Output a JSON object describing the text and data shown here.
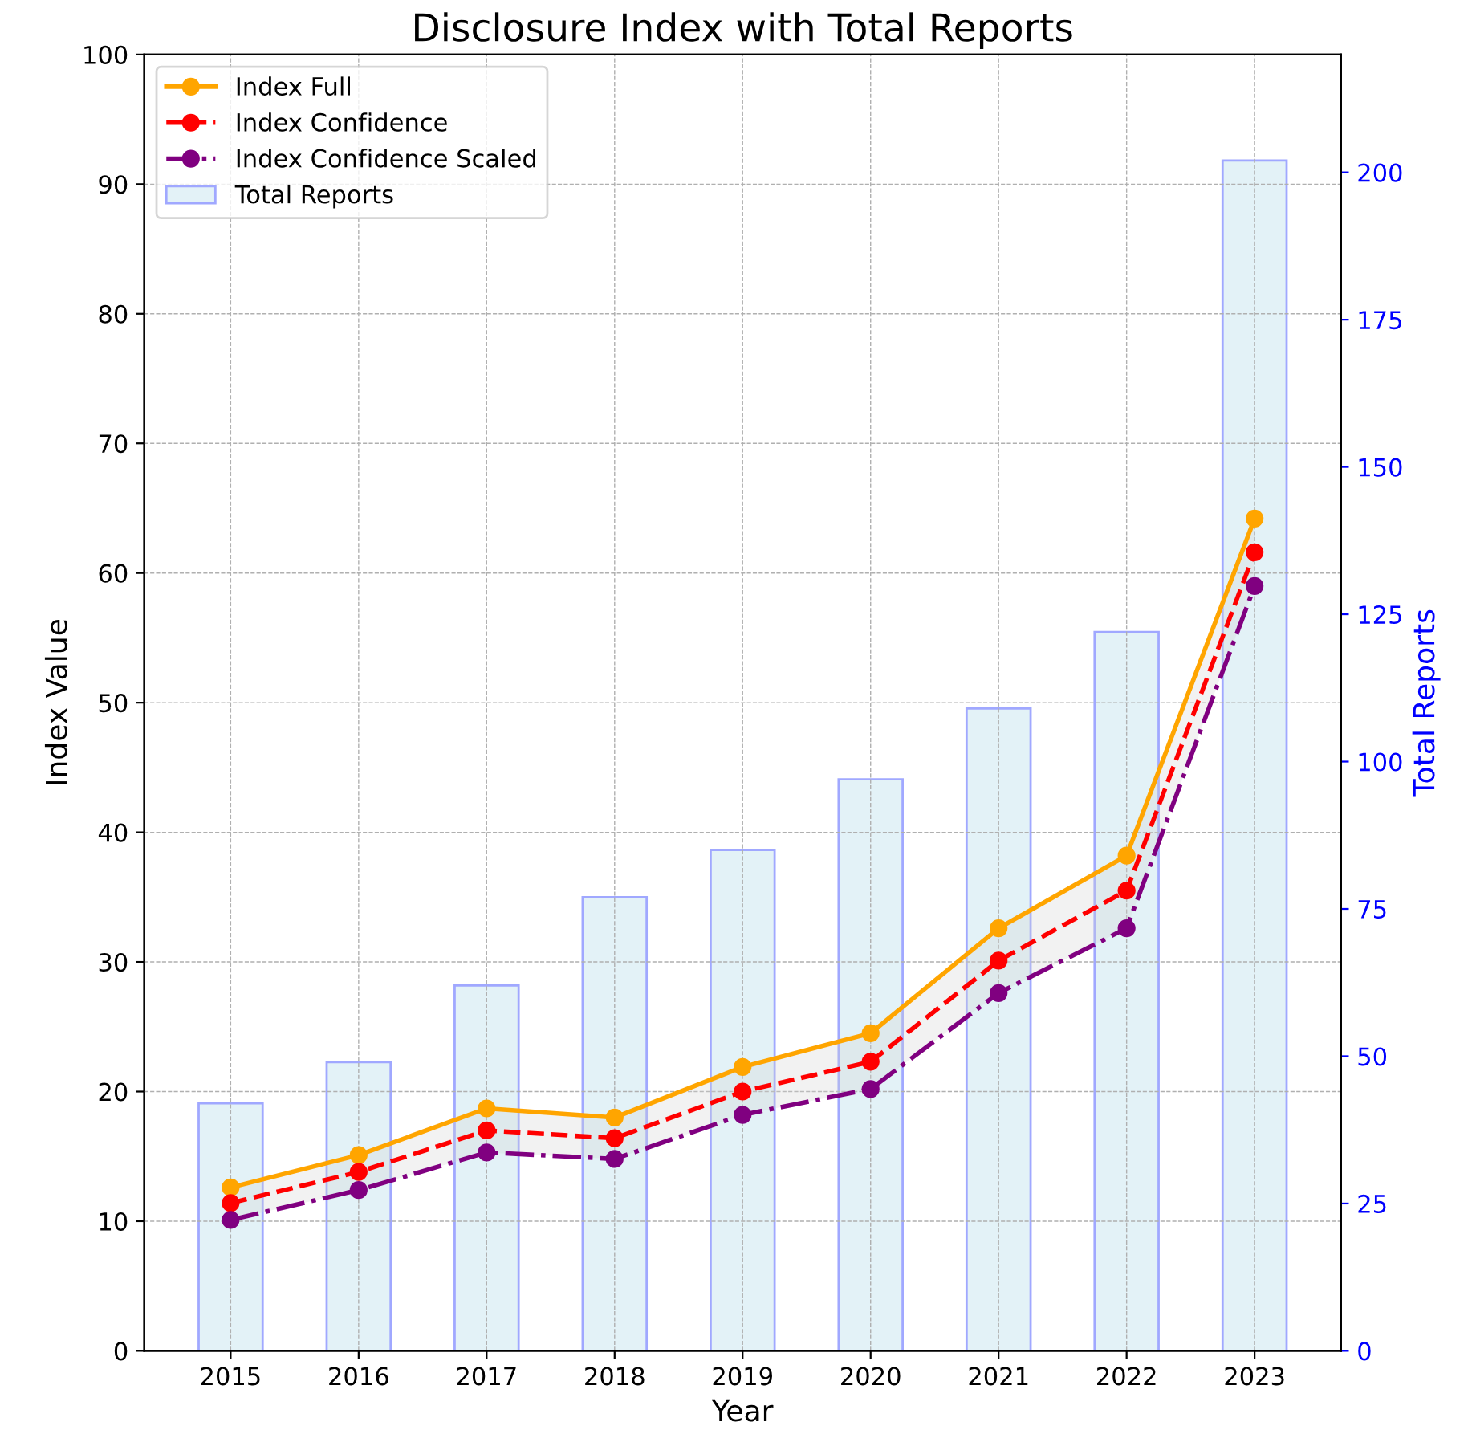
{
  "chart_data": {
    "type": "line",
    "title": "Disclosure Index with Total Reports",
    "xlabel": "Year",
    "ylabel": "Index Value",
    "y2label": "Total Reports",
    "categories": [
      "2015",
      "2016",
      "2017",
      "2018",
      "2019",
      "2020",
      "2021",
      "2022",
      "2023"
    ],
    "series": [
      {
        "name": "Index Full",
        "color": "#ffa500",
        "line_style": "solid",
        "marker": "circle",
        "values": [
          12.6,
          15.1,
          18.7,
          18.0,
          21.9,
          24.5,
          32.6,
          38.2,
          64.2
        ]
      },
      {
        "name": "Index Confidence",
        "color": "#ff0000",
        "line_style": "dashed",
        "marker": "circle",
        "values": [
          11.4,
          13.8,
          17.0,
          16.4,
          20.0,
          22.3,
          30.1,
          35.5,
          61.6
        ],
        "lower": [
          10.1,
          12.4,
          15.3,
          14.8,
          18.2,
          20.2,
          27.6,
          32.6,
          59.0
        ],
        "upper": [
          12.6,
          15.1,
          18.7,
          18.0,
          21.9,
          24.5,
          32.6,
          38.2,
          64.2
        ]
      },
      {
        "name": "Index Confidence Scaled",
        "color": "#800080",
        "line_style": "dashdot",
        "marker": "circle",
        "values": [
          10.1,
          12.4,
          15.3,
          14.8,
          18.2,
          20.2,
          27.6,
          32.6,
          59.0
        ]
      },
      {
        "name": "Total Reports",
        "type": "bar",
        "axis": "y2",
        "color": "#e3f2f7",
        "values": [
          42,
          49,
          62,
          77,
          85,
          97,
          109,
          122,
          202
        ]
      }
    ],
    "ylim": [
      0,
      100
    ],
    "yticks": [
      0,
      10,
      20,
      30,
      40,
      50,
      60,
      70,
      80,
      90,
      100
    ],
    "y2lim": [
      0,
      220
    ],
    "y2ticks": [
      0,
      25,
      50,
      75,
      100,
      125,
      150,
      175,
      200
    ],
    "grid": true,
    "legend": "top left"
  }
}
